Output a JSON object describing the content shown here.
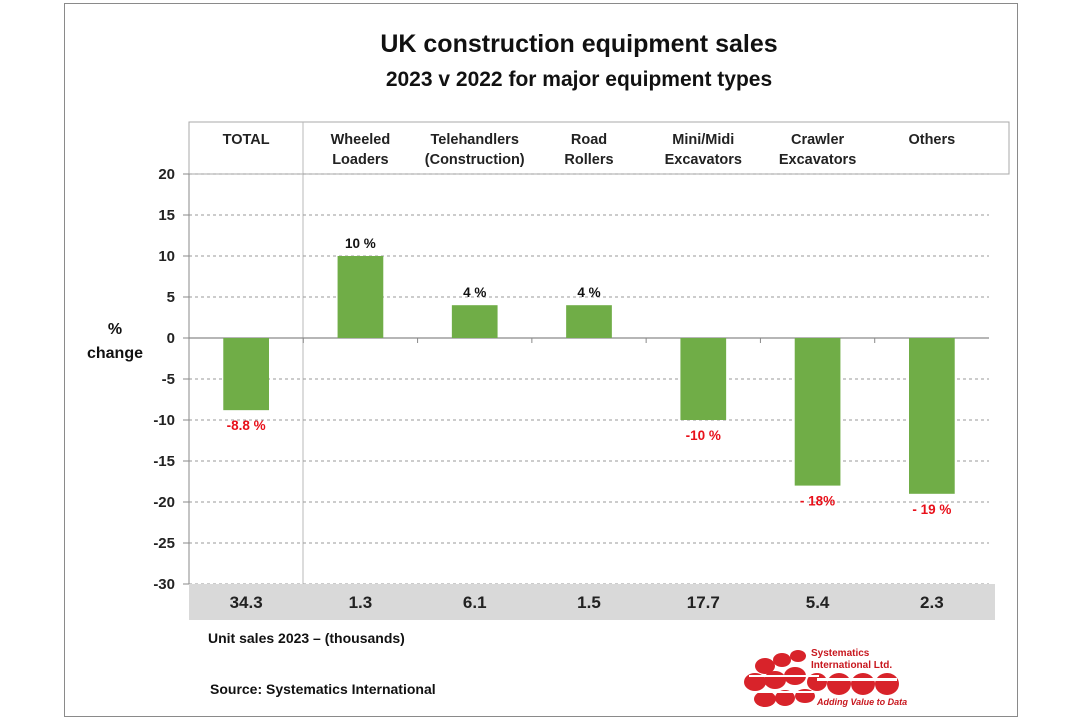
{
  "chart_data": {
    "type": "bar",
    "title": "UK construction equipment sales",
    "subtitle": "2023  v  2022 for major equipment types",
    "ylabel_line1": "%",
    "ylabel_line2": "change",
    "ylim": [
      -30,
      20
    ],
    "yticks": [
      20,
      15,
      10,
      5,
      0,
      -5,
      -10,
      -15,
      -20,
      -25,
      -30
    ],
    "categories": [
      [
        "TOTAL"
      ],
      [
        "Wheeled",
        "Loaders"
      ],
      [
        "Telehandlers",
        "(Construction)"
      ],
      [
        "Road",
        "Rollers"
      ],
      [
        "Mini/Midi",
        "Excavators"
      ],
      [
        "Crawler",
        "Excavators"
      ],
      [
        "Others"
      ]
    ],
    "values": [
      -8.8,
      10,
      4,
      4,
      -10,
      -18,
      -19
    ],
    "data_labels": [
      "-8.8 %",
      "10 %",
      "4 %",
      "4 %",
      "-10 %",
      "- 18%",
      "- 19 %"
    ],
    "unit_sales": [
      "34.3",
      "1.3",
      "6.1",
      "1.5",
      "17.7",
      "5.4",
      "2.3"
    ],
    "unit_sales_label": "Unit sales 2023 –  (thousands)",
    "source": "Source: Systematics International",
    "grid": true,
    "legend": "none",
    "colors": {
      "bar": "#70ad47",
      "negative_label": "#e8101a",
      "positive_label": "#111111",
      "grid": "#9a9a9a",
      "unit_band": "#d9d9d9"
    }
  },
  "logo": {
    "line1": "Systematics",
    "line2": "International Ltd.",
    "tagline": "Adding Value to Data",
    "color": "#d8232a"
  }
}
